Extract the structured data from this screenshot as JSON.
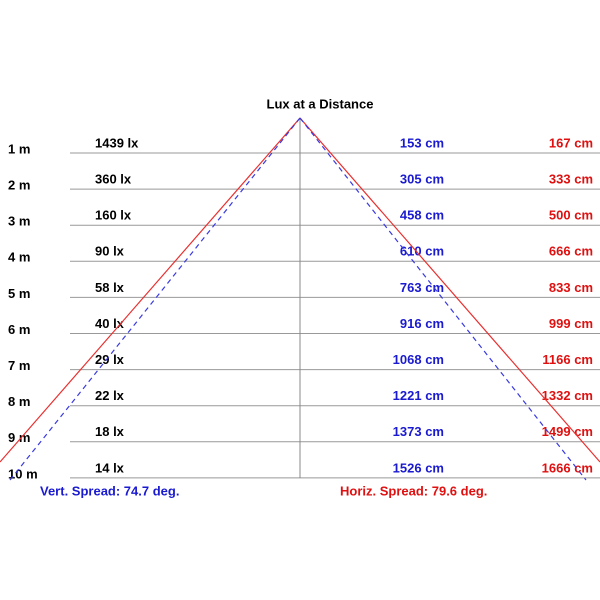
{
  "title": "Lux at a Distance",
  "rows": [
    {
      "distance": "1 m",
      "lux": "1439 lx",
      "vertical": "153 cm",
      "horizontal": "167 cm"
    },
    {
      "distance": "2 m",
      "lux": "360 lx",
      "vertical": "305 cm",
      "horizontal": "333 cm"
    },
    {
      "distance": "3 m",
      "lux": "160 lx",
      "vertical": "458 cm",
      "horizontal": "500 cm"
    },
    {
      "distance": "4 m",
      "lux": "90 lx",
      "vertical": "610 cm",
      "horizontal": "666 cm"
    },
    {
      "distance": "5 m",
      "lux": "58 lx",
      "vertical": "763 cm",
      "horizontal": "833 cm"
    },
    {
      "distance": "6 m",
      "lux": "40 lx",
      "vertical": "916 cm",
      "horizontal": "999 cm"
    },
    {
      "distance": "7 m",
      "lux": "29 lx",
      "vertical": "1068 cm",
      "horizontal": "1166 cm"
    },
    {
      "distance": "8 m",
      "lux": "22 lx",
      "vertical": "1221 cm",
      "horizontal": "1332 cm"
    },
    {
      "distance": "9 m",
      "lux": "18 lx",
      "vertical": "1373 cm",
      "horizontal": "1499 cm"
    },
    {
      "distance": "10 m",
      "lux": "14 lx",
      "vertical": "1526 cm",
      "horizontal": "1666 cm"
    }
  ],
  "vertical_spread": "Vert. Spread: 74.7 deg.",
  "horizontal_spread": "Horiz. Spread: 79.6 deg."
}
